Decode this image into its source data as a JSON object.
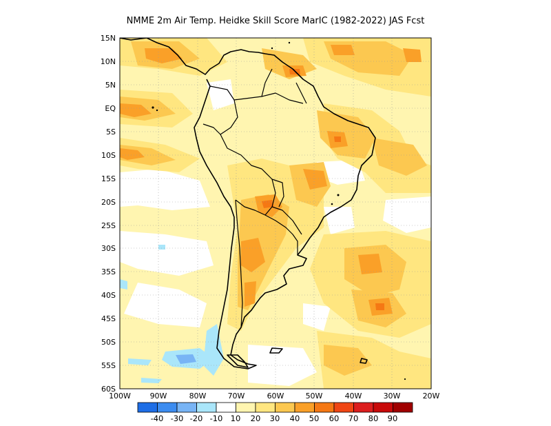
{
  "title": "NMME  2m Air Temp. Heidke Skill Score MarIC (1982-2022) JAS Fcst",
  "map": {
    "lat_labels": [
      "15N",
      "10N",
      "5N",
      "EQ",
      "5S",
      "10S",
      "15S",
      "20S",
      "25S",
      "30S",
      "35S",
      "40S",
      "45S",
      "50S",
      "55S",
      "60S"
    ],
    "lon_labels": [
      "100W",
      "90W",
      "80W",
      "70W",
      "60W",
      "50W",
      "40W",
      "30W",
      "20W"
    ],
    "lat_range": [
      -60,
      15
    ],
    "lon_range": [
      -100,
      -20
    ]
  },
  "colorbar": {
    "labels": [
      "-40",
      "-30",
      "-20",
      "-10",
      "10",
      "20",
      "30",
      "40",
      "50",
      "60",
      "70",
      "80",
      "90"
    ],
    "colors": [
      "#1e6ee6",
      "#3c8cf0",
      "#78b4f5",
      "#aae6fa",
      "#ffffff",
      "#fff5b0",
      "#ffe680",
      "#fcc850",
      "#faa028",
      "#f57814",
      "#f04614",
      "#dc1e1e",
      "#c80a0a",
      "#a00000"
    ]
  }
}
